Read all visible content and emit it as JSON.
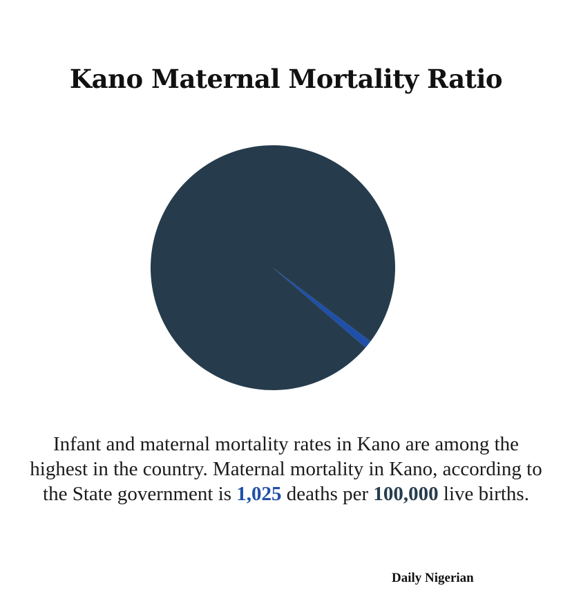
{
  "title": "Kano Maternal Mortality Ratio",
  "caption": {
    "part1": "Infant and maternal mortality rates in Kano are among the highest in the country. Maternal mortality in Kano, according to the State government is ",
    "value1": "1,025",
    "part2": " deaths per ",
    "value2": "100,000",
    "part3": " live births."
  },
  "source": "Daily Nigerian",
  "colors": {
    "main_slice": "#263c4d",
    "highlight_slice": "#1f4fa8"
  },
  "chart_data": {
    "type": "pie",
    "values": [
      1025,
      98975
    ],
    "colors": [
      "#1f4fa8",
      "#263c4d"
    ],
    "title": "Kano Maternal Mortality Ratio"
  }
}
